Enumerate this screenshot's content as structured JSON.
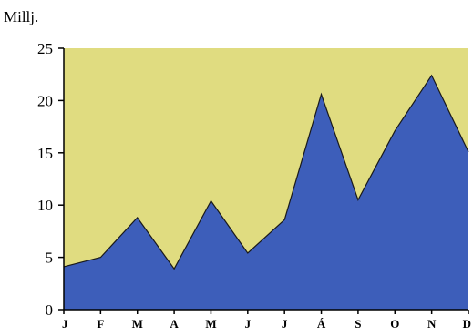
{
  "chart_data": {
    "type": "area",
    "unit_label": "Millj.",
    "categories": [
      "J",
      "F",
      "M",
      "A",
      "M",
      "J",
      "J",
      "Á",
      "S",
      "O",
      "N",
      "D"
    ],
    "values": [
      4.1,
      5.0,
      8.8,
      3.9,
      10.4,
      5.4,
      8.6,
      20.6,
      10.5,
      17.1,
      22.4,
      15.1
    ],
    "ylim": [
      0,
      25
    ],
    "yticks": [
      0,
      5,
      10,
      15,
      20,
      25
    ],
    "grid": false,
    "legend": "none",
    "colors": {
      "plot_background": "#E0DC80",
      "area_fill": "#3D5EBA",
      "area_stroke": "#1A1A1A",
      "axis": "#000000"
    }
  }
}
